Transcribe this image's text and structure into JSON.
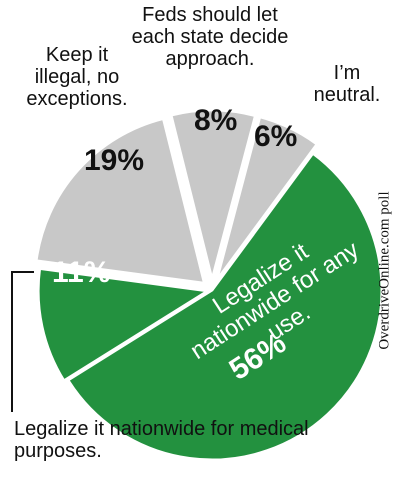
{
  "chart_data": {
    "type": "pie",
    "categories": [
      "Feds should let each state decide approach.",
      "I’m neutral.",
      "Legalize it nationwide for any use.",
      "Legalize it nationwide for medical purposes.",
      "Keep it illegal, no exceptions."
    ],
    "values": [
      8,
      6,
      56,
      11,
      19
    ],
    "value_labels": [
      "8%",
      "6%",
      "56%",
      "11%",
      "19%"
    ],
    "colors": [
      "#c8c8c8",
      "#c8c8c8",
      "#23913f",
      "#23913f",
      "#c8c8c8"
    ],
    "source": "OverdriveOnline.com poll"
  }
}
